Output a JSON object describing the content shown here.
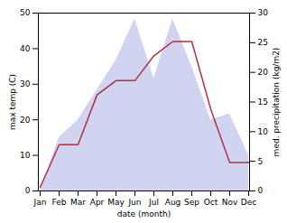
{
  "chart_data": {
    "type": "line",
    "categories": [
      "Jan",
      "Feb",
      "Mar",
      "Apr",
      "May",
      "Jun",
      "Jul",
      "Aug",
      "Sep",
      "Oct",
      "Nov",
      "Dec"
    ],
    "xlabel": "date (month)",
    "ylabel": "max temp (C)",
    "y2label": "med. precipitation (kg/m2)",
    "ylim": [
      0,
      50
    ],
    "yticks": [
      0,
      10,
      20,
      30,
      40,
      50
    ],
    "y2lim": [
      0,
      30
    ],
    "y2ticks": [
      0,
      5,
      10,
      15,
      20,
      25,
      30
    ],
    "grid": false,
    "series": [
      {
        "type": "area",
        "color": "#b0b8e8",
        "axis": "y2",
        "values": [
          0,
          9,
          12,
          17,
          22,
          29,
          19,
          29,
          21,
          12,
          13,
          6
        ]
      },
      {
        "type": "line",
        "color": "#b03040",
        "values": [
          1,
          13,
          13,
          27,
          31,
          31,
          38,
          42,
          42,
          23,
          8,
          8
        ]
      }
    ]
  }
}
